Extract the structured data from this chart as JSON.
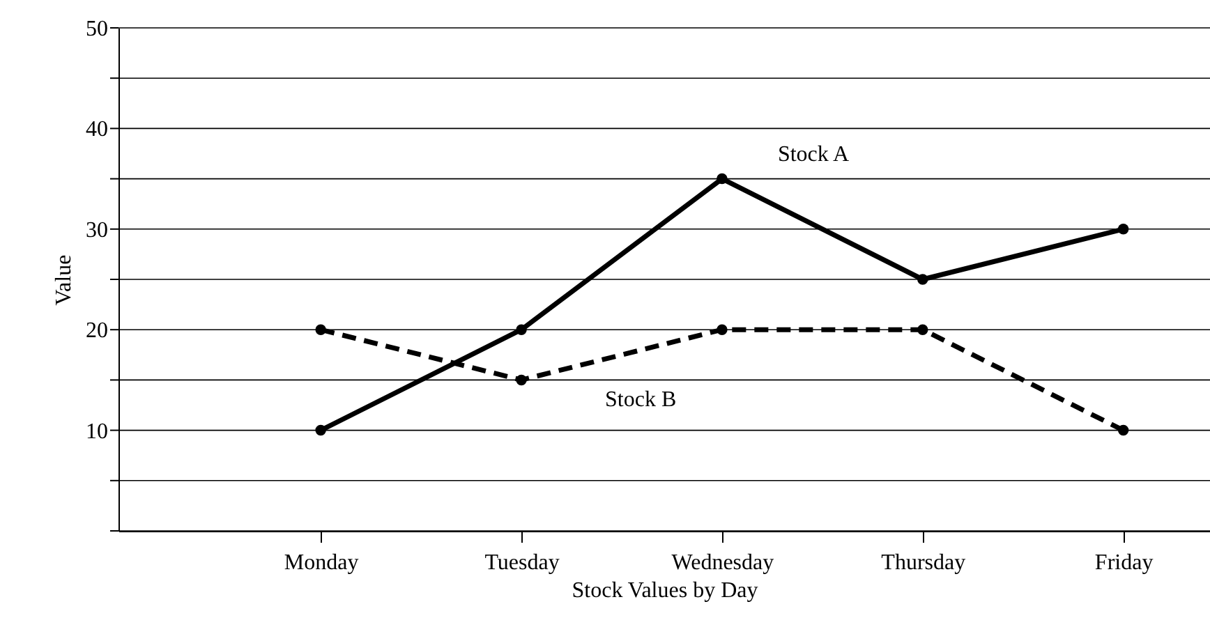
{
  "chart_data": {
    "type": "line",
    "xlabel": "Stock Values by Day",
    "ylabel": "Value",
    "categories": [
      "Monday",
      "Tuesday",
      "Wednesday",
      "Thursday",
      "Friday"
    ],
    "series": [
      {
        "name": "Stock A",
        "color": "#000000",
        "line_style": "solid",
        "values": [
          10,
          20,
          35,
          25,
          30
        ]
      },
      {
        "name": "Stock B",
        "color": "#000000",
        "line_style": "dashed",
        "values": [
          20,
          15,
          20,
          20,
          10
        ]
      }
    ],
    "ylim": [
      0,
      50
    ],
    "yticks": [
      {
        "value": 0,
        "label": null
      },
      {
        "value": 5,
        "label": null
      },
      10,
      {
        "value": 15,
        "label": null
      },
      20,
      {
        "value": 25,
        "label": null
      },
      30,
      {
        "value": 35,
        "label": null
      },
      40,
      {
        "value": 45,
        "label": null
      },
      50
    ],
    "grid": "y",
    "marker": "circle"
  }
}
